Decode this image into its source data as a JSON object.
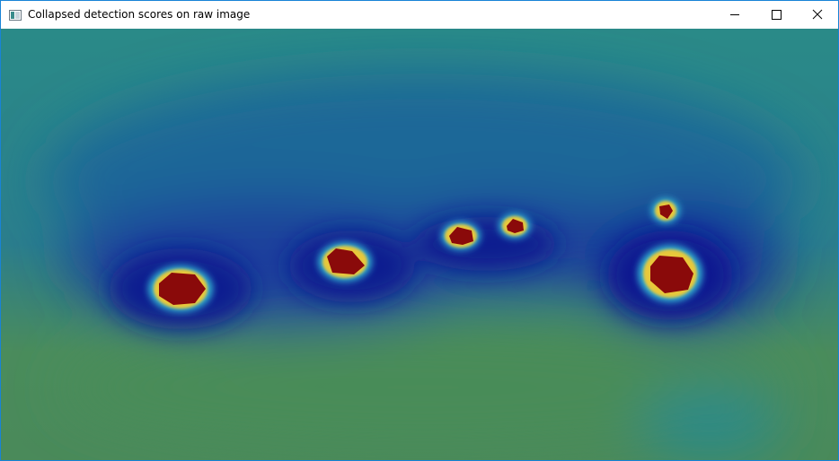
{
  "window": {
    "title": "Collapsed detection scores on raw image"
  }
}
